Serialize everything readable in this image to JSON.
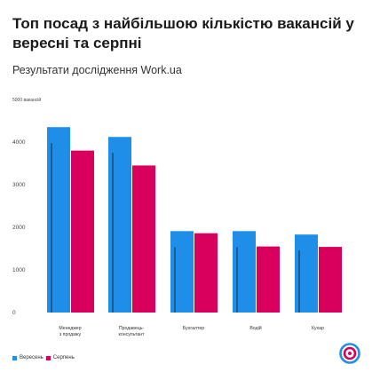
{
  "header": {
    "title": "Топ посад з найбільшою кількістю вакансій у вересні та серпні",
    "subtitle": "Результати дослідження Work.ua"
  },
  "chart_data": {
    "type": "bar",
    "unit_label": "вакансій",
    "categories": [
      [
        "Менеджер",
        "з продажу"
      ],
      [
        "Продавець-",
        "консультант"
      ],
      [
        "Бухгалтер"
      ],
      [
        "Водій"
      ],
      [
        "Кухар"
      ]
    ],
    "series": [
      {
        "name": "Вересень",
        "color": "#1f8ee8",
        "values": [
          4350,
          4120,
          1910,
          1910,
          1830
        ]
      },
      {
        "name": "Серпень",
        "color": "#d8005c",
        "values": [
          3800,
          3450,
          1860,
          1550,
          1540
        ]
      }
    ],
    "yticks": [
      0,
      1000,
      2000,
      3000,
      4000,
      5000
    ],
    "ylim": [
      0,
      5000
    ],
    "grid": false,
    "legend_position": "bottom-left"
  },
  "brand": {
    "logo_icon": "work-ua-logo-icon",
    "colors": {
      "blue": "#1f8ee8",
      "red": "#d8005c"
    }
  }
}
